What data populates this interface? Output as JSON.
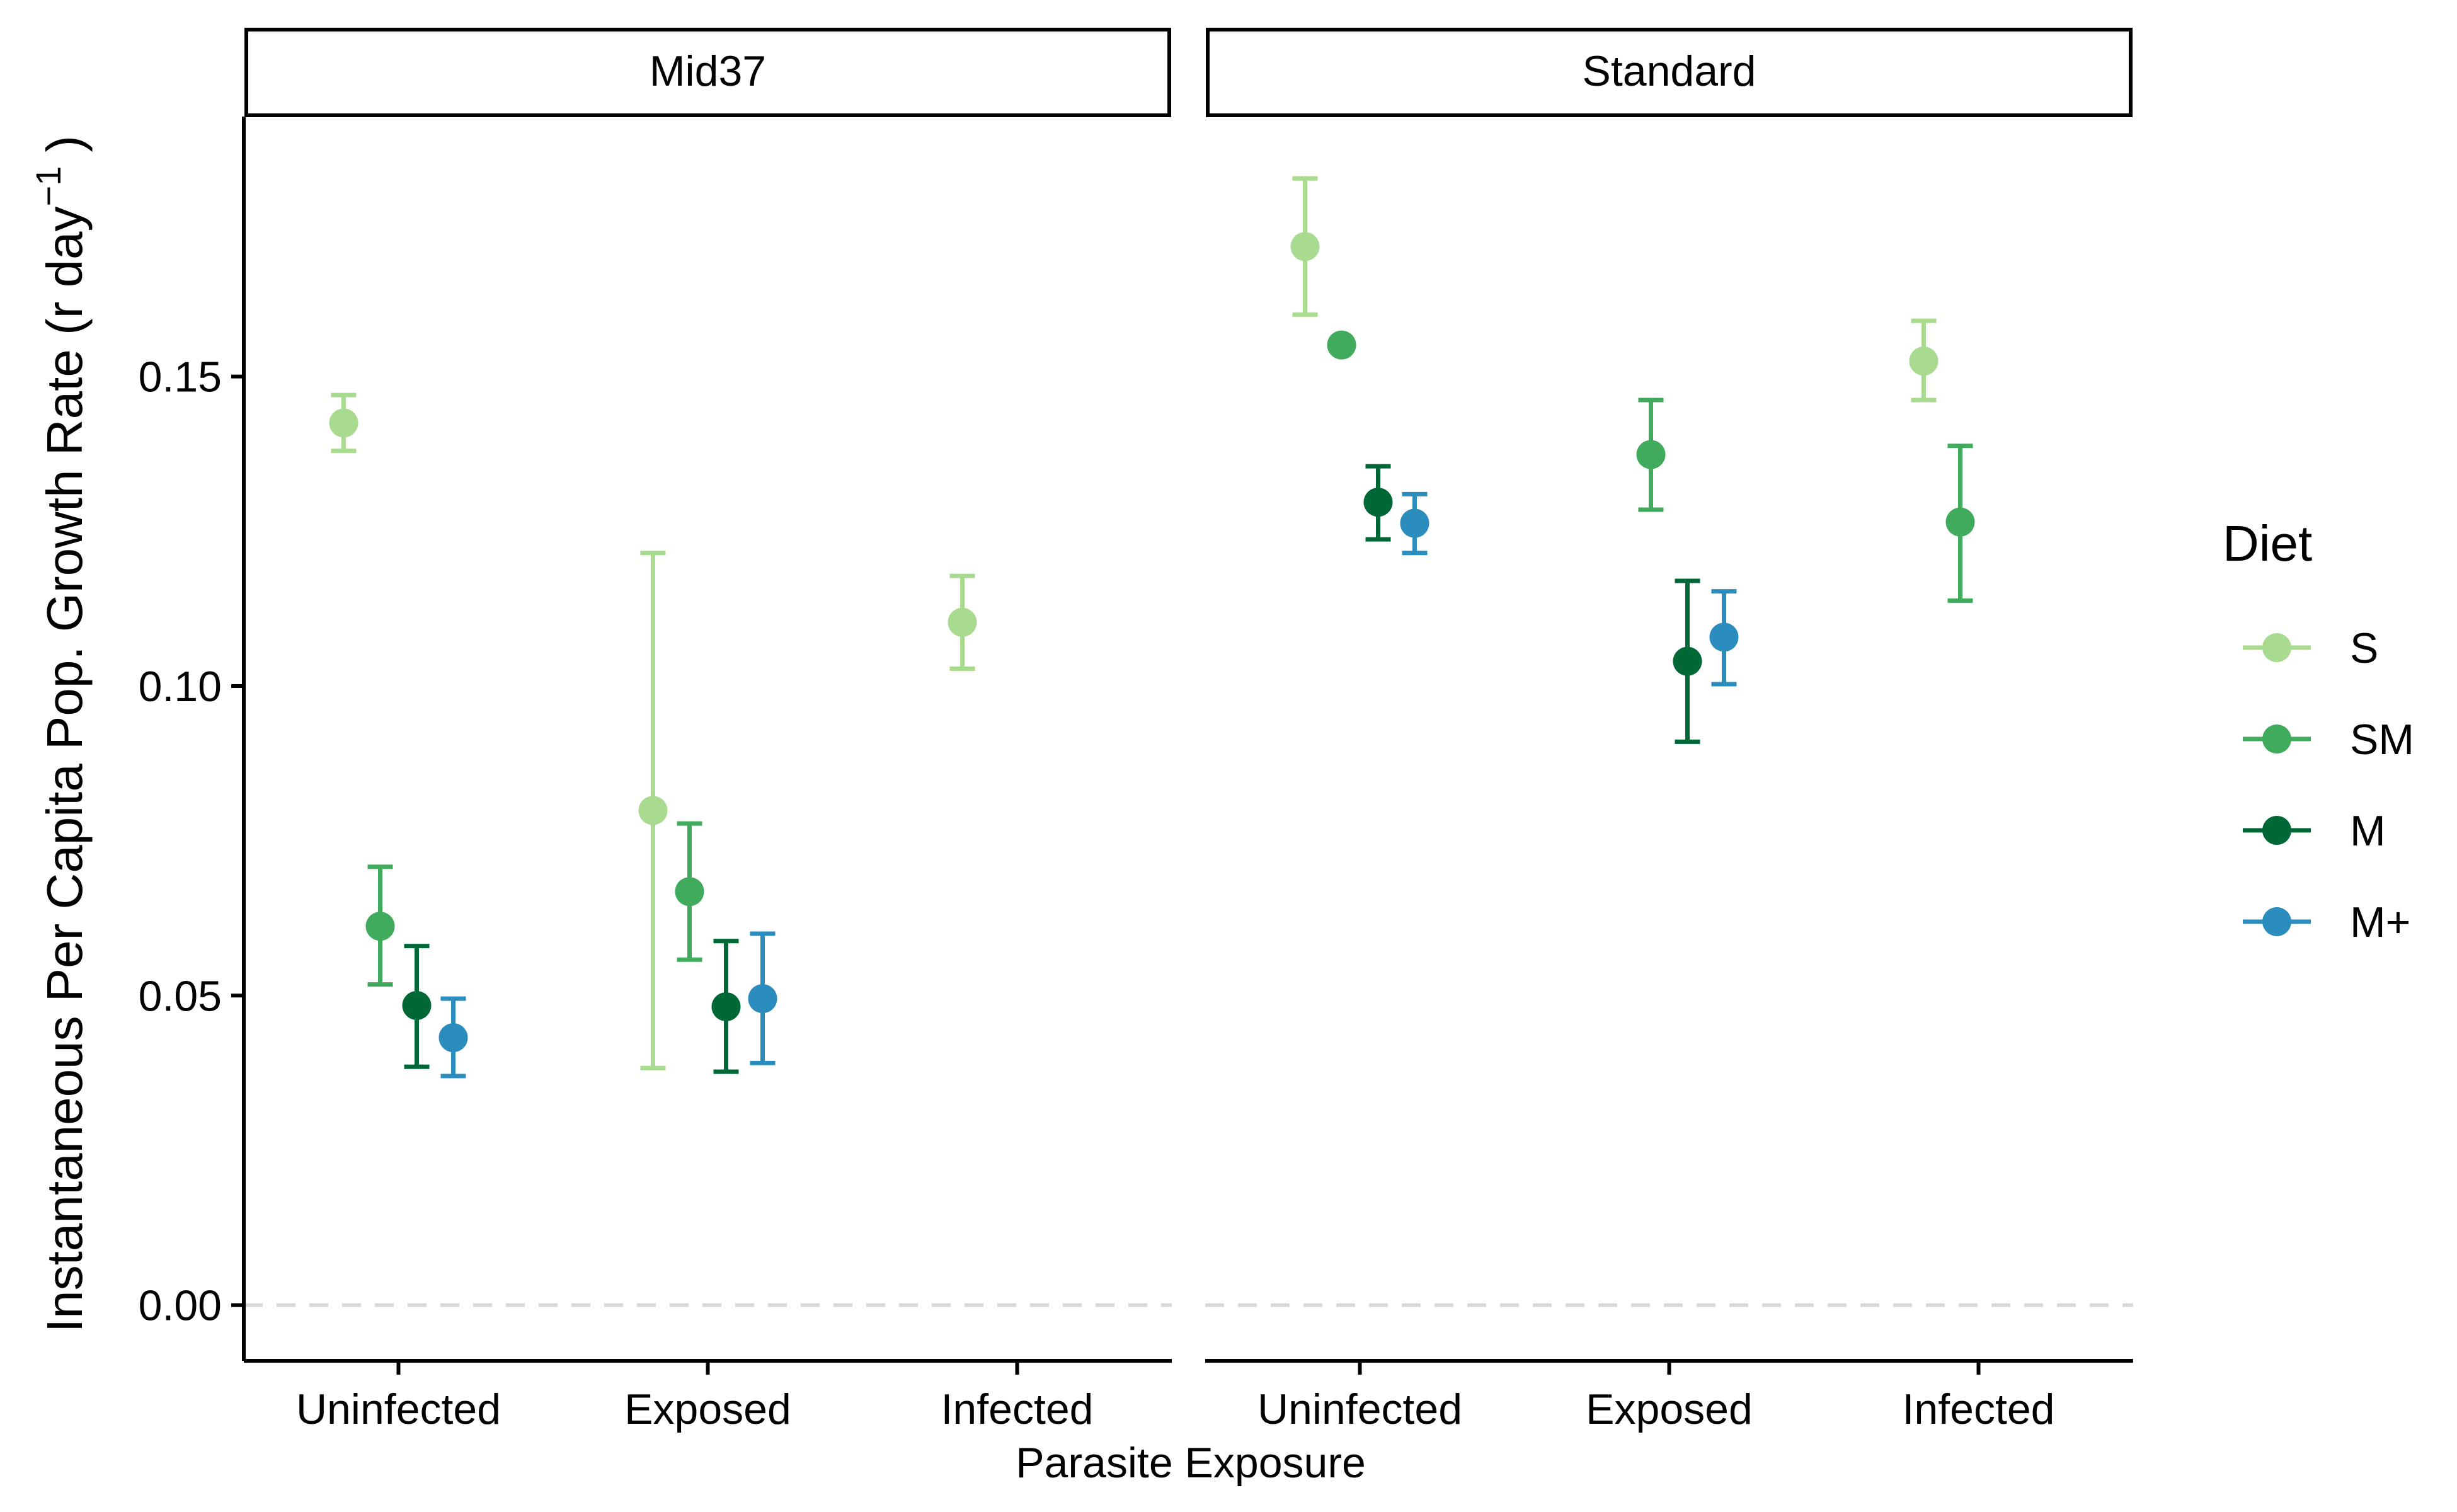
{
  "chart_data": {
    "type": "scatter",
    "subtype": "point-errorbar, faceted",
    "xlabel": "Parasite Exposure",
    "ylabel": "Instantaneous Per Capita Pop. Growth Rate (r day",
    "ylabel_superscript": "−1",
    "ylabel_close": ")",
    "ylim": [
      -0.009,
      0.192
    ],
    "y_ticks": [
      {
        "value": 0.0,
        "label": "0.00"
      },
      {
        "value": 0.05,
        "label": "0.05"
      },
      {
        "value": 0.1,
        "label": "0.10"
      },
      {
        "value": 0.15,
        "label": "0.15"
      }
    ],
    "categories": [
      "Uninfected",
      "Exposed",
      "Infected"
    ],
    "reference_line": {
      "y": 0,
      "style": "dashed",
      "color": "#d9d9d9"
    },
    "grid": false,
    "legend": {
      "title": "Diet",
      "position": "right",
      "entries": [
        {
          "key": "S",
          "label": "S",
          "color": "#a8db8f"
        },
        {
          "key": "SM",
          "label": "SM",
          "color": "#41ab5d"
        },
        {
          "key": "M",
          "label": "M",
          "color": "#006837"
        },
        {
          "key": "M+",
          "label": "M+",
          "color": "#2b8cbe"
        }
      ]
    },
    "dodge_order": [
      "S",
      "SM",
      "M",
      "M+"
    ],
    "facets": [
      {
        "label": "Mid37",
        "points": [
          {
            "category": "Uninfected",
            "diet": "S",
            "y": 0.1425,
            "ymin": 0.138,
            "ymax": 0.147
          },
          {
            "category": "Uninfected",
            "diet": "SM",
            "y": 0.0612,
            "ymin": 0.0518,
            "ymax": 0.0708
          },
          {
            "category": "Uninfected",
            "diet": "M",
            "y": 0.0484,
            "ymin": 0.0385,
            "ymax": 0.058
          },
          {
            "category": "Uninfected",
            "diet": "M+",
            "y": 0.0432,
            "ymin": 0.037,
            "ymax": 0.0495
          },
          {
            "category": "Exposed",
            "diet": "S",
            "y": 0.0799,
            "ymin": 0.0383,
            "ymax": 0.1215
          },
          {
            "category": "Exposed",
            "diet": "SM",
            "y": 0.0668,
            "ymin": 0.0558,
            "ymax": 0.0778
          },
          {
            "category": "Exposed",
            "diet": "M",
            "y": 0.0482,
            "ymin": 0.0377,
            "ymax": 0.0588
          },
          {
            "category": "Exposed",
            "diet": "M+",
            "y": 0.0495,
            "ymin": 0.0391,
            "ymax": 0.06
          },
          {
            "category": "Infected",
            "diet": "S",
            "y": 0.1103,
            "ymin": 0.1028,
            "ymax": 0.1178
          }
        ]
      },
      {
        "label": "Standard",
        "points": [
          {
            "category": "Uninfected",
            "diet": "S",
            "y": 0.171,
            "ymin": 0.16,
            "ymax": 0.182
          },
          {
            "category": "Uninfected",
            "diet": "SM",
            "y": 0.1551,
            "ymin": 0.1546,
            "ymax": 0.1556
          },
          {
            "category": "Uninfected",
            "diet": "M",
            "y": 0.1297,
            "ymin": 0.1237,
            "ymax": 0.1355
          },
          {
            "category": "Uninfected",
            "diet": "M+",
            "y": 0.1263,
            "ymin": 0.1215,
            "ymax": 0.131
          },
          {
            "category": "Exposed",
            "diet": "SM",
            "y": 0.1374,
            "ymin": 0.1285,
            "ymax": 0.1462
          },
          {
            "category": "Exposed",
            "diet": "M",
            "y": 0.104,
            "ymin": 0.091,
            "ymax": 0.117
          },
          {
            "category": "Exposed",
            "diet": "M+",
            "y": 0.1079,
            "ymin": 0.1003,
            "ymax": 0.1153
          },
          {
            "category": "Infected",
            "diet": "S",
            "y": 0.1525,
            "ymin": 0.1462,
            "ymax": 0.159
          },
          {
            "category": "Infected",
            "diet": "SM",
            "y": 0.1265,
            "ymin": 0.1138,
            "ymax": 0.1388
          }
        ]
      }
    ]
  }
}
